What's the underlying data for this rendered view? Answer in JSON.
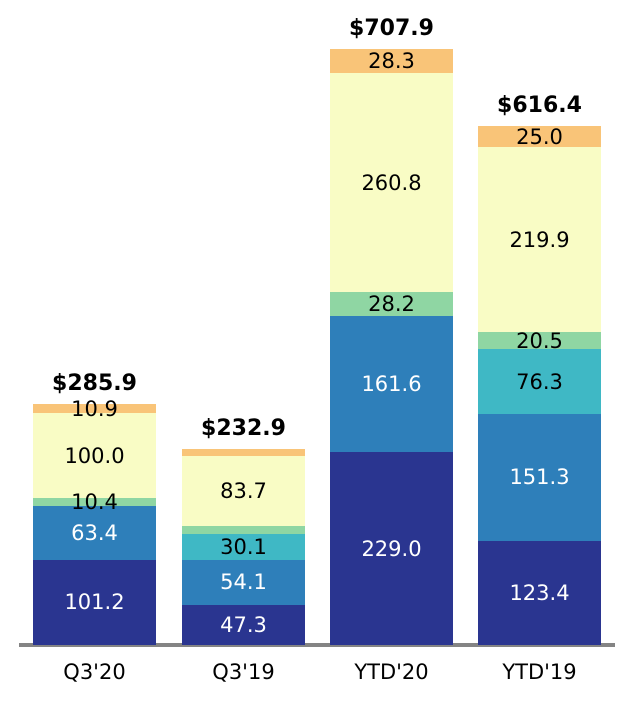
{
  "chart_data": {
    "type": "bar",
    "variant": "stacked-vertical",
    "title": "",
    "xlabel": "",
    "ylabel": "",
    "grid": false,
    "legend": false,
    "y_axis_shown": false,
    "categories": [
      "Q3'20",
      "Q3'19",
      "YTD'20",
      "YTD'19"
    ],
    "totals": {
      "labels": [
        "$285.9",
        "$232.9",
        "$707.9",
        "$616.4"
      ],
      "values": [
        285.9,
        232.9,
        707.9,
        616.4
      ]
    },
    "series": [
      {
        "name": "segment-navy",
        "color": "#2a3590",
        "label_color": "#ffffff",
        "values": [
          101.2,
          47.3,
          229.0,
          123.4
        ],
        "labels": [
          "101.2",
          "47.3",
          "229.0",
          "123.4"
        ]
      },
      {
        "name": "segment-blue",
        "color": "#2e7fba",
        "label_color": "#ffffff",
        "values": [
          63.4,
          54.1,
          161.6,
          151.3
        ],
        "labels": [
          "63.4",
          "54.1",
          "161.6",
          "151.3"
        ]
      },
      {
        "name": "segment-teal",
        "color": "#3fb8c5",
        "label_color": "#000000",
        "values": [
          0,
          30.1,
          0,
          76.3
        ],
        "labels": [
          "",
          "30.1",
          "",
          "76.3"
        ]
      },
      {
        "name": "segment-green",
        "color": "#8fd6a3",
        "label_color": "#000000",
        "values": [
          10.4,
          9.5,
          28.2,
          20.5
        ],
        "labels": [
          "10.4",
          "",
          "28.2",
          "20.5"
        ]
      },
      {
        "name": "segment-yellow",
        "color": "#f9fcc5",
        "label_color": "#000000",
        "values": [
          100.0,
          83.7,
          260.8,
          219.9
        ],
        "labels": [
          "100.0",
          "83.7",
          "260.8",
          "219.9"
        ]
      },
      {
        "name": "segment-orange",
        "color": "#f9c478",
        "label_color": "#000000",
        "values": [
          10.9,
          8.2,
          28.3,
          25.0
        ],
        "labels": [
          "10.9",
          "",
          "28.3",
          "25.0"
        ]
      }
    ],
    "axis": {
      "baseline_color": "#848484",
      "tick_label_color": "#000000"
    },
    "ylim": [
      0,
      710
    ]
  }
}
